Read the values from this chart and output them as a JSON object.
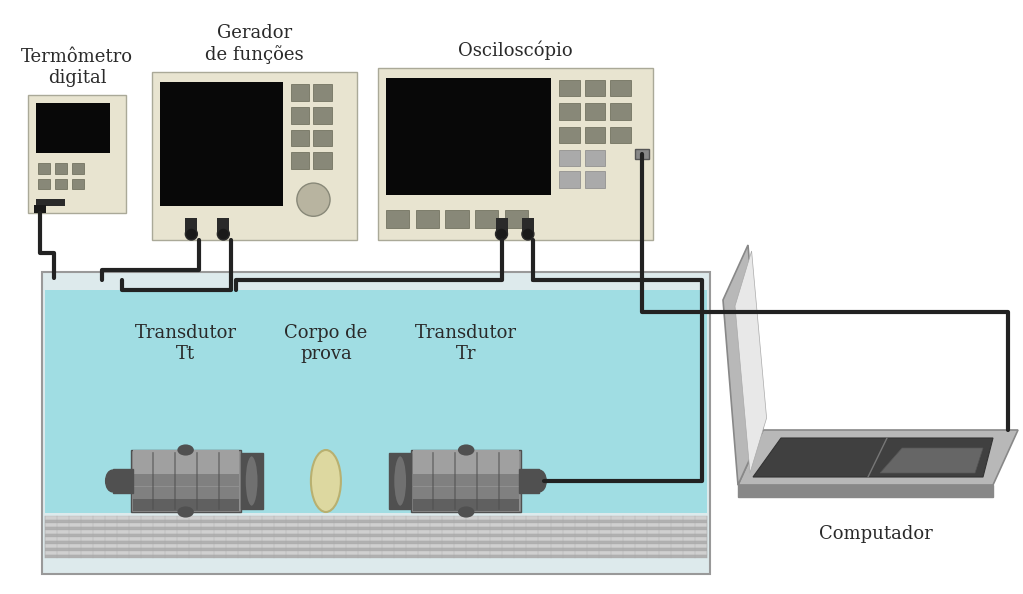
{
  "bg_color": "#ffffff",
  "text_color": "#2a2a2a",
  "device_body_color": "#e8e4d0",
  "device_screen_color": "#080808",
  "device_button_color": "#888878",
  "water_color": "#6ed4dc",
  "water_alpha": 0.55,
  "tank_body_color": "#ddeaec",
  "tank_outline": "#aaaaaa",
  "transducer_body": "#909090",
  "transducer_dark": "#505050",
  "transducer_mid": "#707070",
  "sample_color": "#ddd8a0",
  "cable_color": "#222222",
  "laptop_body": "#b8b8b8",
  "laptop_dark": "#888888",
  "laptop_screen_bg": "#e8e8e8",
  "laptop_keyboard": "#404040",
  "foam_light": "#d0d0d0",
  "foam_dark": "#b0b0b0",
  "labels": {
    "thermometer": "Termômetro\ndigital",
    "generator": "Gerador\nde funções",
    "oscilloscope": "Osciloscópio",
    "computer": "Computador",
    "transducer_t": "Transdutor\nTt",
    "transducer_r": "Transdutor\nTr",
    "sample": "Corpo de\nprova"
  },
  "font_size": 13
}
